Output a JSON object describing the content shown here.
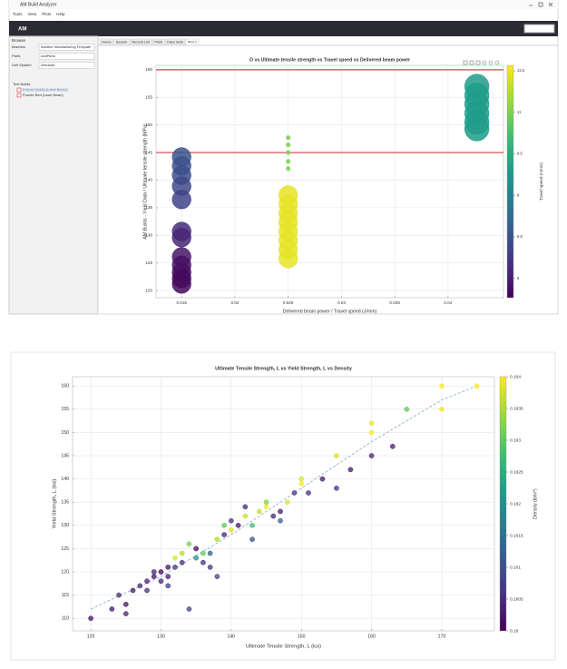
{
  "window": {
    "title": "AM Build Analyzer",
    "menu": [
      "Tools",
      "View",
      "Plots",
      "Help"
    ],
    "logo": "AM"
  },
  "sidebar": {
    "header": "Browse",
    "fields": [
      {
        "label": "Machine",
        "value": "Additive Manufacturing Template"
      },
      {
        "label": "Parts",
        "value": "AddParts"
      },
      {
        "label": "Unit System",
        "value": "Windows"
      }
    ],
    "tree": {
      "root": "Test Builds",
      "items": [
        "Ensure Quality (Laser Beam)",
        "Powder Bed (Laser Beam)"
      ]
    }
  },
  "tabs": [
    "Home",
    "Search",
    "Recent List",
    "Plots",
    "Data Sets",
    "Plot 1"
  ],
  "chart_data": [
    {
      "type": "bubble",
      "title": "O vs Ultimate tensile strength vs Travel speed vs Delivered beam power",
      "xlabel": "Delivered beam power / Travel speed (J/mm)",
      "ylabel": "AM Builds - Yield Data / Ultimate tensile strength (MPa)",
      "colorbar_label": "Travel speed (mm/s)",
      "colormap": "viridis",
      "xlim": [
        0.0126,
        0.0452
      ],
      "xticks": [
        0.015,
        0.02,
        0.025,
        0.03,
        0.035,
        0.04
      ],
      "ylim": [
        118.7,
        160.8
      ],
      "yticks": [
        120,
        125,
        130,
        135,
        140,
        145,
        150,
        155,
        160
      ],
      "clim": [
        4.3,
        12.7
      ],
      "cticks": [
        5,
        6.5,
        8,
        9.5,
        11,
        12.5
      ],
      "grid": true,
      "hlines": [
        160,
        145
      ],
      "hline_color": "#e23b3b",
      "x": [
        0.015,
        0.015,
        0.015,
        0.015,
        0.015,
        0.015,
        0.015,
        0.015,
        0.015,
        0.015,
        0.015,
        0.015,
        0.025,
        0.025,
        0.025,
        0.025,
        0.025,
        0.025,
        0.025,
        0.025,
        0.025,
        0.025,
        0.025,
        0.025,
        0.025,
        0.0427,
        0.0427,
        0.0427,
        0.0427,
        0.0427,
        0.0427
      ],
      "y": [
        144.2,
        142.6,
        140.9,
        138.9,
        136.5,
        130.7,
        129.6,
        126.1,
        124.6,
        123.3,
        122.2,
        121.2,
        147.7,
        146.4,
        145.0,
        143.4,
        142.1,
        137.3,
        135.7,
        134.0,
        132.4,
        130.7,
        129.1,
        127.4,
        125.8,
        157.0,
        155.4,
        153.8,
        152.1,
        150.5,
        149.3
      ],
      "sizes": [
        300,
        300,
        300,
        300,
        300,
        300,
        300,
        300,
        300,
        300,
        300,
        300,
        15,
        15,
        15,
        15,
        15,
        300,
        300,
        300,
        300,
        300,
        300,
        300,
        300,
        500,
        500,
        500,
        500,
        500,
        500
      ],
      "c": [
        6.5,
        6.4,
        6.3,
        6.2,
        6.0,
        5.3,
        5.2,
        4.8,
        4.7,
        4.6,
        4.5,
        4.5,
        11,
        11,
        11,
        11,
        11,
        12.4,
        12.4,
        12.4,
        12.4,
        12.4,
        12.4,
        12.4,
        12.4,
        8.9,
        8.9,
        8.9,
        8.9,
        8.9,
        8.9
      ]
    },
    {
      "type": "scatter",
      "title": "Ultimate Tensile Strength, L vs Yield Strength, L vs Density",
      "xlabel": "Ultimate Tensile Strength, L (ksi)",
      "ylabel": "Yield Strength, L (ksi)",
      "colorbar_label": "Density (lb/in³)",
      "colormap": "viridis",
      "xlim": [
        117.4,
        177.5
      ],
      "xticks": [
        120,
        130,
        140,
        150,
        160,
        170
      ],
      "ylim": [
        107.3,
        162
      ],
      "yticks": [
        110,
        115,
        120,
        125,
        130,
        135,
        140,
        145,
        150,
        155,
        160
      ],
      "clim": [
        0.16,
        0.164
      ],
      "cticks": [
        0.16,
        0.1605,
        0.161,
        0.1615,
        0.162,
        0.1625,
        0.163,
        0.1635,
        0.164
      ],
      "grid": true,
      "fit": {
        "x": [
          120,
          130,
          140,
          150,
          160,
          170,
          175
        ],
        "y": [
          112,
          119,
          128,
          138,
          148,
          157,
          160
        ]
      },
      "x": [
        120,
        123,
        124,
        125,
        125,
        126,
        127,
        128,
        128,
        129,
        130,
        130,
        131,
        131,
        132,
        132,
        133,
        133,
        134,
        134,
        135,
        135,
        136,
        136,
        137,
        137,
        138,
        138,
        139,
        139,
        140,
        140,
        141,
        142,
        142,
        143,
        144,
        145,
        145,
        146,
        147,
        148,
        149,
        150,
        150,
        151,
        153,
        155,
        155,
        157,
        160,
        160,
        160,
        163,
        165,
        170,
        170,
        175,
        143,
        147,
        129,
        131
      ],
      "y": [
        110,
        112,
        115,
        113,
        111,
        116,
        117,
        118,
        116,
        119,
        120,
        118,
        119,
        117,
        121,
        123,
        124,
        122,
        126,
        112,
        125,
        123,
        124,
        122,
        124,
        121,
        127,
        119,
        128,
        130,
        131,
        129,
        130,
        132,
        134,
        130,
        133,
        134,
        135,
        132,
        133,
        135,
        137,
        139,
        140,
        137,
        140,
        145,
        138,
        142,
        150,
        152,
        145,
        147,
        155,
        160,
        155,
        160,
        127,
        131,
        120,
        121
      ],
      "c": [
        0.1602,
        0.1603,
        0.1605,
        0.1602,
        0.1604,
        0.1603,
        0.1604,
        0.1603,
        0.1605,
        0.1602,
        0.1601,
        0.1604,
        0.1603,
        0.1607,
        0.1606,
        0.1638,
        0.1635,
        0.1605,
        0.1632,
        0.1608,
        0.1601,
        0.162,
        0.163,
        0.1605,
        0.1612,
        0.1606,
        0.1635,
        0.1608,
        0.1604,
        0.163,
        0.1606,
        0.1638,
        0.1603,
        0.1637,
        0.1605,
        0.1628,
        0.1636,
        0.164,
        0.1632,
        0.1604,
        0.1603,
        0.1638,
        0.1606,
        0.164,
        0.1638,
        0.1605,
        0.1603,
        0.1638,
        0.1606,
        0.1603,
        0.164,
        0.1639,
        0.1604,
        0.1603,
        0.163,
        0.164,
        0.1639,
        0.164,
        0.161,
        0.1612,
        0.1604,
        0.1602
      ]
    }
  ]
}
